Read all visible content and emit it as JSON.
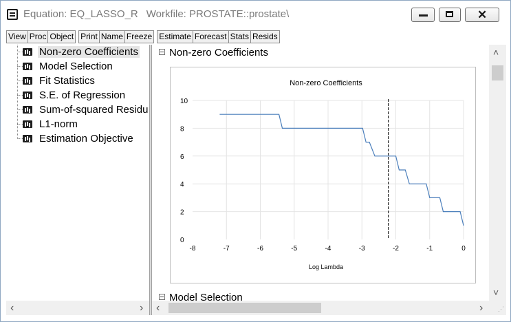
{
  "window": {
    "title": "Equation: EQ_LASSO_R",
    "workfile": "Workfile: PROSTATE::prostate\\",
    "icons": {
      "app": "equals-icon",
      "minimize": "minimize-icon",
      "maximize": "maximize-icon",
      "close": "close-icon"
    }
  },
  "toolbar": {
    "group1": [
      "View",
      "Proc",
      "Object"
    ],
    "group2": [
      "Print",
      "Name",
      "Freeze"
    ],
    "group3": [
      "Estimate",
      "Forecast",
      "Stats",
      "Resids"
    ]
  },
  "tree": {
    "items": [
      {
        "label": "Non-zero Coefficients",
        "selected": true
      },
      {
        "label": "Model Selection",
        "selected": false
      },
      {
        "label": "Fit Statistics",
        "selected": false
      },
      {
        "label": "S.E. of Regression",
        "selected": false
      },
      {
        "label": "Sum-of-squared Residu",
        "selected": false
      },
      {
        "label": "L1-norm",
        "selected": false
      },
      {
        "label": "Estimation Objective",
        "selected": false
      }
    ]
  },
  "content": {
    "section1": "Non-zero Coefficients",
    "section2": "Model Selection"
  },
  "chart_data": {
    "type": "line",
    "title": "Non-zero Coefficients",
    "xlabel": "Log Lambda",
    "ylabel": "",
    "xlim": [
      -8,
      0
    ],
    "ylim": [
      0,
      10
    ],
    "xticks": [
      "-8",
      "-7",
      "-6",
      "-5",
      "-4",
      "-3",
      "-2",
      "-1",
      "0"
    ],
    "yticks": [
      "0",
      "2",
      "4",
      "6",
      "8",
      "10"
    ],
    "grid": true,
    "legend": "none",
    "line_color": "#4a7ebb",
    "vline_x": -2.22,
    "series": [
      {
        "x": [
          -7.2,
          -5.45,
          -5.35,
          -2.98,
          -2.88,
          -2.78,
          -2.62,
          -2.22,
          -2.0,
          -1.9,
          -1.72,
          -1.6,
          -1.1,
          -1.0,
          -0.7,
          -0.6,
          -0.1,
          0.0
        ],
        "values": [
          9,
          9,
          8,
          8,
          7,
          7,
          6,
          6,
          6,
          5,
          5,
          4,
          4,
          3,
          3,
          2,
          2,
          1
        ]
      }
    ]
  },
  "scroll": {
    "left": "‹",
    "right": "›",
    "up": "˄",
    "down": "˅"
  }
}
